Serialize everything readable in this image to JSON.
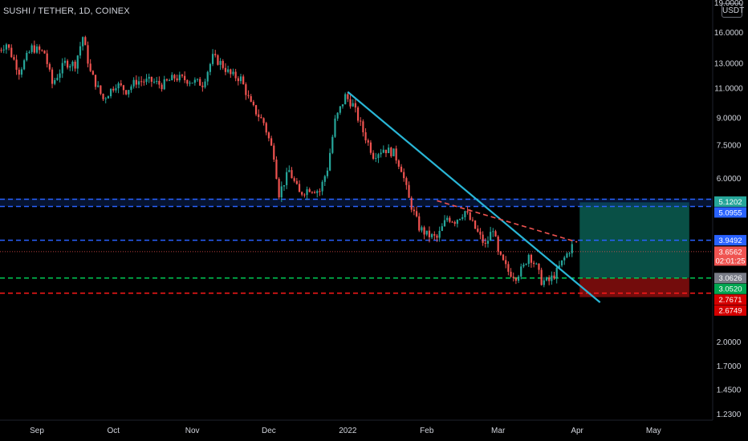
{
  "header": {
    "ticker": "SUSHI / TETHER, 1D, COINEX",
    "currency": "USDT",
    "top_clip_label": "19.0000"
  },
  "colors": {
    "background": "#000000",
    "up": "#26a69a",
    "down": "#ef5350",
    "trendline": "#29b6d6",
    "resistance_dash": "#2962ff",
    "support_green": "#00c853",
    "support_red": "#ff1a1a",
    "target_zone": "#0b5e52",
    "stop_zone": "#7f0d0d",
    "axis_text": "#d1d4dc"
  },
  "chart_data": {
    "type": "candlestick",
    "title": "SUSHI / TETHER, 1D, COINEX",
    "y_scale": "log",
    "ylim": [
      1.12,
      19.0
    ],
    "y_ticks": [
      "16.0000",
      "13.0000",
      "11.0000",
      "9.0000",
      "7.5000",
      "6.0000",
      "2.0000",
      "1.7000",
      "1.4500",
      "1.2300"
    ],
    "x_ticks": [
      "Sep",
      "Oct",
      "Nov",
      "Dec",
      "2022",
      "Feb",
      "Mar",
      "Apr",
      "May"
    ],
    "x_tick_dates": [
      "2021-09-01",
      "2021-10-01",
      "2021-11-01",
      "2021-12-01",
      "2022-01-01",
      "2022-02-01",
      "2022-03-01",
      "2022-04-01",
      "2022-05-01"
    ],
    "close_path": [
      [
        "2021-08-17",
        14.2
      ],
      [
        "2021-08-20",
        14.8
      ],
      [
        "2021-08-25",
        12.3
      ],
      [
        "2021-08-30",
        14.4
      ],
      [
        "2021-09-04",
        13.9
      ],
      [
        "2021-09-07",
        11.3
      ],
      [
        "2021-09-12",
        13.0
      ],
      [
        "2021-09-16",
        12.9
      ],
      [
        "2021-09-19",
        15.5
      ],
      [
        "2021-09-22",
        12.2
      ],
      [
        "2021-09-27",
        10.2
      ],
      [
        "2021-10-02",
        11.3
      ],
      [
        "2021-10-06",
        10.8
      ],
      [
        "2021-10-10",
        11.5
      ],
      [
        "2021-10-16",
        11.5
      ],
      [
        "2021-10-20",
        11.2
      ],
      [
        "2021-10-25",
        11.8
      ],
      [
        "2021-10-30",
        11.6
      ],
      [
        "2021-11-05",
        11.3
      ],
      [
        "2021-11-09",
        13.5
      ],
      [
        "2021-11-12",
        13.0
      ],
      [
        "2021-11-16",
        12.0
      ],
      [
        "2021-11-20",
        11.7
      ],
      [
        "2021-11-24",
        9.8
      ],
      [
        "2021-11-29",
        8.7
      ],
      [
        "2021-12-03",
        7.0
      ],
      [
        "2021-12-05",
        5.4
      ],
      [
        "2021-12-09",
        6.3
      ],
      [
        "2021-12-13",
        5.4
      ],
      [
        "2021-12-17",
        5.6
      ],
      [
        "2021-12-21",
        5.5
      ],
      [
        "2021-12-24",
        6.4
      ],
      [
        "2021-12-27",
        8.8
      ],
      [
        "2021-12-31",
        10.4
      ],
      [
        "2022-01-03",
        9.8
      ],
      [
        "2022-01-07",
        8.2
      ],
      [
        "2022-01-11",
        7.0
      ],
      [
        "2022-01-15",
        7.3
      ],
      [
        "2022-01-19",
        7.1
      ],
      [
        "2022-01-22",
        6.4
      ],
      [
        "2022-01-25",
        5.2
      ],
      [
        "2022-01-29",
        4.3
      ],
      [
        "2022-02-01",
        4.1
      ],
      [
        "2022-02-05",
        4.0
      ],
      [
        "2022-02-09",
        4.6
      ],
      [
        "2022-02-12",
        4.5
      ],
      [
        "2022-02-16",
        4.8
      ],
      [
        "2022-02-19",
        4.4
      ],
      [
        "2022-02-24",
        3.8
      ],
      [
        "2022-02-27",
        4.3
      ],
      [
        "2022-03-01",
        3.6
      ],
      [
        "2022-03-05",
        3.2
      ],
      [
        "2022-03-08",
        3.1
      ],
      [
        "2022-03-11",
        3.3
      ],
      [
        "2022-03-13",
        3.6
      ],
      [
        "2022-03-16",
        3.3
      ],
      [
        "2022-03-18",
        3.0
      ],
      [
        "2022-03-21",
        3.0
      ],
      [
        "2022-03-24",
        3.2
      ],
      [
        "2022-03-27",
        3.5
      ],
      [
        "2022-03-30",
        3.8
      ]
    ],
    "horizontal_levels": [
      {
        "price": 5.2,
        "style": "dashed",
        "color": "#2962ff",
        "shaded": true
      },
      {
        "price": 3.9492,
        "style": "dashed",
        "color": "#2962ff"
      },
      {
        "price": 3.0626,
        "style": "dashed",
        "color": "#00c853"
      },
      {
        "price": 2.7671,
        "style": "dashed",
        "color": "#ff1a1a"
      }
    ],
    "trendlines": [
      {
        "from": [
          "2022-01-01",
          10.7
        ],
        "to": [
          "2022-04-10",
          2.6
        ],
        "style": "solid"
      },
      {
        "from": [
          "2022-02-05",
          5.15
        ],
        "to": [
          "2022-04-01",
          3.9
        ],
        "style": "dashed"
      }
    ],
    "position_tool": {
      "entry": 3.0626,
      "target": 5.0955,
      "stop": 2.7671,
      "start": "2022-04-02",
      "end": "2022-05-15"
    },
    "price_labels": [
      {
        "text": "5.1202",
        "price": 5.1202,
        "bg": "#26a69a"
      },
      {
        "text": "5.0955",
        "price": 5.0955,
        "bg": "#2962ff"
      },
      {
        "text": "3.9492",
        "price": 3.9492,
        "bg": "#2962ff"
      },
      {
        "text": "3.6562",
        "sub": "02:01:25",
        "price": 3.6562,
        "bg": "#ef5350"
      },
      {
        "text": "3.0626",
        "price": 3.0626,
        "bg": "#787b86"
      },
      {
        "text": "3.0520",
        "price": 2.95,
        "bg": "#00a651"
      },
      {
        "text": "2.7671",
        "price": 2.7671,
        "bg": "#d50000"
      },
      {
        "text": "2.6749",
        "price": 2.6749,
        "bg": "#d50000"
      }
    ],
    "last_price": 3.6562
  }
}
